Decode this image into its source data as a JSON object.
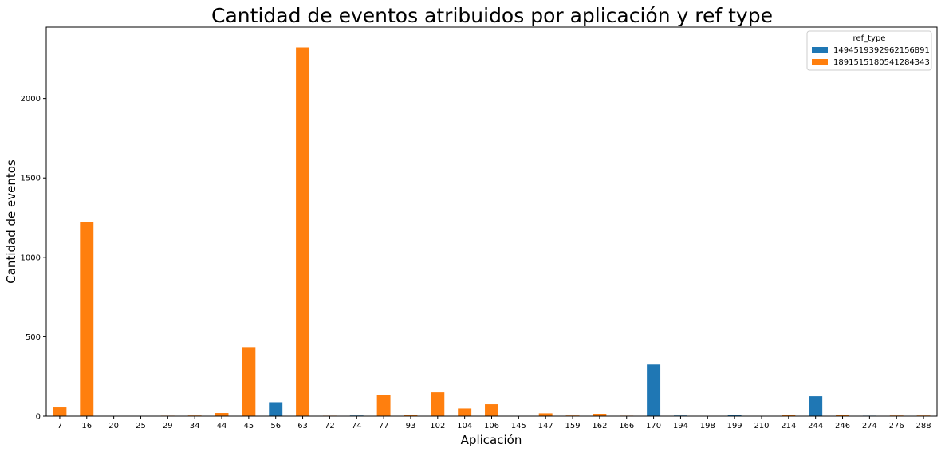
{
  "chart_data": {
    "type": "bar",
    "title": "Cantidad de eventos atribuidos por aplicación y ref type",
    "xlabel": "Aplicación",
    "ylabel": "Cantidad de eventos",
    "ylim": [
      0,
      2450
    ],
    "yticks": [
      0,
      500,
      1000,
      1500,
      2000
    ],
    "grid": false,
    "legend": {
      "title": "ref_type",
      "placement": "top-right"
    },
    "categories": [
      "7",
      "16",
      "20",
      "25",
      "29",
      "34",
      "44",
      "45",
      "56",
      "63",
      "72",
      "74",
      "77",
      "93",
      "102",
      "104",
      "106",
      "145",
      "147",
      "159",
      "162",
      "166",
      "170",
      "194",
      "198",
      "199",
      "210",
      "214",
      "244",
      "246",
      "274",
      "276",
      "288"
    ],
    "series": [
      {
        "name": "1494519392962156891",
        "color": "#1f77b4",
        "values": [
          0,
          0,
          0,
          0,
          0,
          0,
          0,
          0,
          88,
          0,
          0,
          4,
          0,
          0,
          0,
          0,
          0,
          0,
          0,
          0,
          0,
          0,
          325,
          4,
          0,
          8,
          0,
          0,
          125,
          0,
          3,
          0,
          0
        ]
      },
      {
        "name": "1891515180541284343",
        "color": "#ff7f0e",
        "values": [
          55,
          1222,
          0,
          0,
          3,
          4,
          20,
          435,
          0,
          2322,
          3,
          0,
          135,
          10,
          150,
          48,
          75,
          0,
          18,
          4,
          15,
          3,
          0,
          0,
          0,
          0,
          0,
          10,
          0,
          10,
          0,
          4,
          4
        ]
      }
    ]
  }
}
